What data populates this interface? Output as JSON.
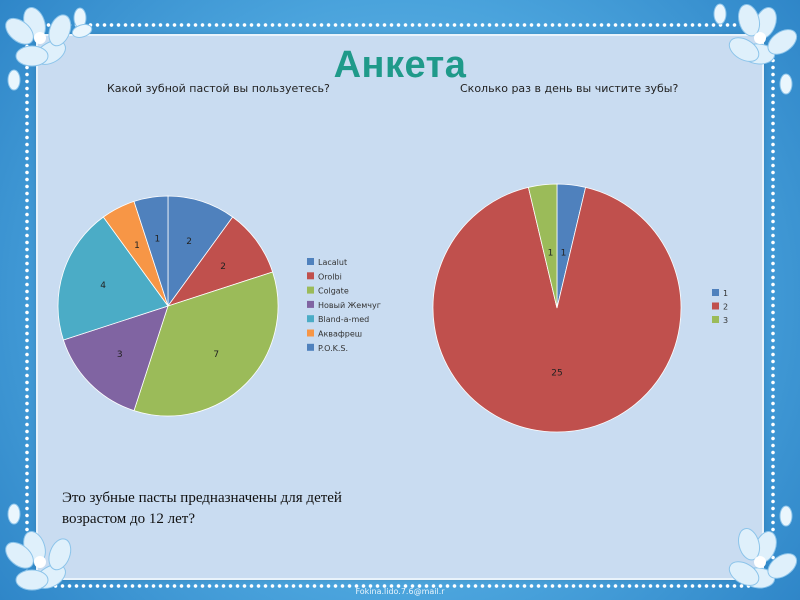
{
  "slide": {
    "title": "Анкета",
    "note": "Это зубные пасты предназначены для детей возрастом до 12 лет?",
    "footer": "Fokina.lido.7.6@mail.r"
  },
  "colors": {
    "frame": "#4aa3dc",
    "panel": "#c9dcf1",
    "title": "#1f9a8a"
  },
  "chart_data": [
    {
      "type": "pie",
      "title": "Какой зубной пастой вы пользуетесь?",
      "legend_position": "right",
      "slices": [
        {
          "label": "Lacalut",
          "value": 2,
          "color": "#4f81bd"
        },
        {
          "label": "Orolbi",
          "value": 2,
          "color": "#c0504d"
        },
        {
          "label": "Colgate",
          "value": 7,
          "color": "#9bbb59"
        },
        {
          "label": "Новый Жемчуг",
          "value": 3,
          "color": "#8064a2"
        },
        {
          "label": "Bland-a-med",
          "value": 4,
          "color": "#4bacc6"
        },
        {
          "label": "Аквафреш",
          "value": 1,
          "color": "#f79646"
        },
        {
          "label": "P.O.K.S.",
          "value": 1,
          "color": "#4f81bd"
        }
      ]
    },
    {
      "type": "pie",
      "title": "Сколько раз в день вы чистите зубы?",
      "legend_position": "right",
      "slices": [
        {
          "label": "1",
          "value": 1,
          "color": "#4f81bd"
        },
        {
          "label": "2",
          "value": 25,
          "color": "#c0504d"
        },
        {
          "label": "3",
          "value": 1,
          "color": "#9bbb59"
        }
      ]
    }
  ]
}
